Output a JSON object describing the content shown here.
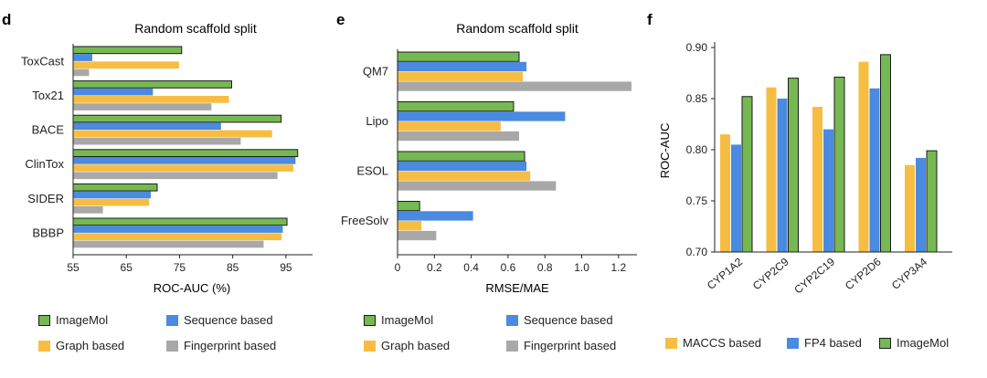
{
  "colors": {
    "imagemol": "#76b852",
    "sequence": "#4a8ae0",
    "graph": "#f7bd42",
    "fingerprint": "#a8a8a8",
    "maccs": "#f7bd42",
    "fp4": "#4a8ae0",
    "axis": "#222222"
  },
  "chart_data": [
    {
      "panel": "d",
      "type": "bar",
      "orientation": "horizontal",
      "title": "Random scaffold split",
      "xlabel": "ROC-AUC (%)",
      "ylabel": "",
      "xlim": [
        55,
        100
      ],
      "xticks": [
        "55",
        "65",
        "75",
        "85",
        "95"
      ],
      "xtick_values": [
        55,
        65,
        75,
        85,
        95
      ],
      "categories": [
        "ToxCast",
        "Tox21",
        "BACE",
        "ClinTox",
        "SIDER",
        "BBBP"
      ],
      "series": [
        {
          "name": "ImageMol",
          "color_key": "imagemol",
          "values": [
            75.4,
            84.8,
            94.1,
            97.2,
            70.8,
            95.2
          ]
        },
        {
          "name": "Sequence based",
          "color_key": "sequence",
          "values": [
            58.6,
            70.0,
            82.8,
            96.8,
            69.6,
            94.4
          ]
        },
        {
          "name": "Graph based",
          "color_key": "graph",
          "values": [
            74.9,
            84.3,
            92.4,
            96.4,
            69.3,
            94.2
          ]
        },
        {
          "name": "Fingerprint based",
          "color_key": "fingerprint",
          "values": [
            58.0,
            81.0,
            86.5,
            93.4,
            60.6,
            90.8
          ]
        }
      ],
      "legend": [
        {
          "label": "ImageMol",
          "color_key": "imagemol"
        },
        {
          "label": "Sequence based",
          "color_key": "sequence"
        },
        {
          "label": "Graph based",
          "color_key": "graph"
        },
        {
          "label": "Fingerprint based",
          "color_key": "fingerprint"
        }
      ]
    },
    {
      "panel": "e",
      "type": "bar",
      "orientation": "horizontal",
      "title": "Random scaffold split",
      "xlabel": "RMSE/MAE",
      "ylabel": "",
      "xlim": [
        0,
        1.3
      ],
      "xticks": [
        "0",
        "0.2",
        "0.4",
        "0.6",
        "0.8",
        "1.0",
        "1.2"
      ],
      "xtick_values": [
        0,
        0.2,
        0.4,
        0.6,
        0.8,
        1.0,
        1.2
      ],
      "categories": [
        "QM7",
        "Lipo",
        "ESOL",
        "FreeSolv"
      ],
      "series": [
        {
          "name": "ImageMol",
          "color_key": "imagemol",
          "values": [
            0.66,
            0.63,
            0.69,
            0.12
          ]
        },
        {
          "name": "Sequence based",
          "color_key": "sequence",
          "values": [
            0.7,
            0.91,
            0.7,
            0.41
          ]
        },
        {
          "name": "Graph based",
          "color_key": "graph",
          "values": [
            0.68,
            0.56,
            0.72,
            0.13
          ]
        },
        {
          "name": "Fingerprint based",
          "color_key": "fingerprint",
          "values": [
            1.27,
            0.66,
            0.86,
            0.21
          ]
        }
      ],
      "legend": [
        {
          "label": "ImageMol",
          "color_key": "imagemol"
        },
        {
          "label": "Sequence based",
          "color_key": "sequence"
        },
        {
          "label": "Graph based",
          "color_key": "graph"
        },
        {
          "label": "Fingerprint based",
          "color_key": "fingerprint"
        }
      ]
    },
    {
      "panel": "f",
      "type": "bar",
      "orientation": "vertical",
      "title": "",
      "xlabel": "",
      "ylabel": "ROC-AUC",
      "ylim": [
        0.7,
        0.9
      ],
      "yticks": [
        "0.70",
        "0.75",
        "0.80",
        "0.85",
        "0.90"
      ],
      "ytick_values": [
        0.7,
        0.75,
        0.8,
        0.85,
        0.9
      ],
      "categories": [
        "CYP1A2",
        "CYP2C9",
        "CYP2C19",
        "CYP2D6",
        "CYP3A4"
      ],
      "series": [
        {
          "name": "MACCS based",
          "color_key": "maccs",
          "values": [
            0.815,
            0.861,
            0.842,
            0.886,
            0.785
          ]
        },
        {
          "name": "FP4 based",
          "color_key": "fp4",
          "values": [
            0.805,
            0.85,
            0.82,
            0.86,
            0.792
          ]
        },
        {
          "name": "ImageMol",
          "color_key": "imagemol",
          "values": [
            0.852,
            0.87,
            0.871,
            0.893,
            0.799
          ]
        }
      ],
      "legend": [
        {
          "label": "MACCS based",
          "color_key": "maccs"
        },
        {
          "label": "FP4 based",
          "color_key": "fp4"
        },
        {
          "label": "ImageMol",
          "color_key": "imagemol"
        }
      ]
    }
  ]
}
